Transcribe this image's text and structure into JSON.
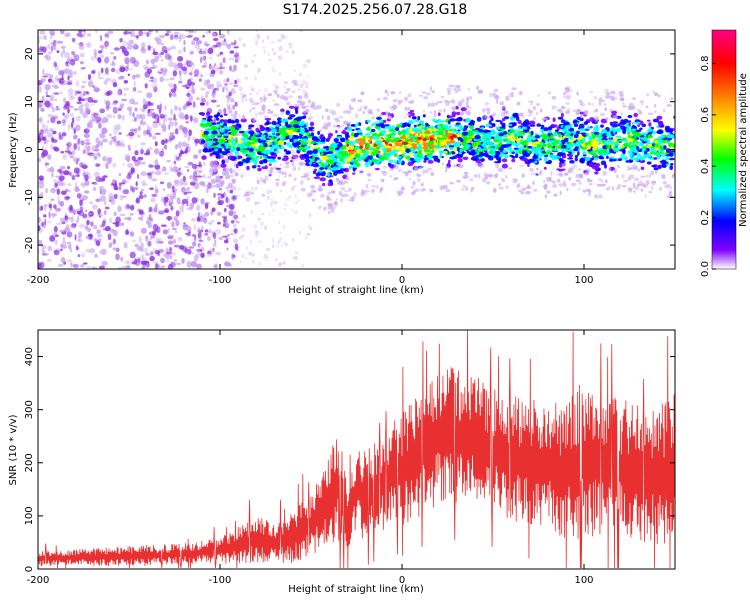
{
  "title": "S174.2025.256.07.28.G18",
  "chart_data": [
    {
      "type": "heatmap",
      "title": "S174.2025.256.07.28.G18",
      "xlabel": "Height of straight line (km)",
      "ylabel": "Frequency (Hz)",
      "xlim": [
        -200,
        150
      ],
      "ylim": [
        -25,
        25
      ],
      "xticks": [
        -200,
        -100,
        0,
        100
      ],
      "xtick_labels": [
        "-200",
        "-100",
        "0",
        "100"
      ],
      "yticks": [
        -20,
        -10,
        0,
        10,
        20
      ],
      "ytick_labels": [
        "-20",
        "-10",
        "0",
        "10",
        "20"
      ],
      "colorbar": {
        "label": "Normalized spectral amplitude",
        "range": [
          0,
          0.93
        ],
        "ticks": [
          0.0,
          0.2,
          0.4,
          0.6,
          0.8
        ],
        "tick_labels": [
          "0.0",
          "0.2",
          "0.4",
          "0.6",
          "0.8"
        ],
        "colormap": [
          "#ffffff",
          "#8000ff",
          "#0000ff",
          "#00ffff",
          "#00ff00",
          "#ffff00",
          "#ff8000",
          "#ff0000",
          "#ff0080"
        ]
      },
      "ridge_line": {
        "x": [
          -110,
          -100,
          -90,
          -80,
          -70,
          -60,
          -50,
          -45,
          -40,
          -35,
          -30,
          -20,
          -10,
          0,
          10,
          20,
          30,
          40,
          50,
          60,
          70,
          80,
          90,
          100,
          110,
          120,
          130,
          140,
          150
        ],
        "y": [
          3.5,
          2.5,
          1.5,
          0.5,
          1.5,
          4.0,
          1.0,
          -1.5,
          -2.5,
          -1.0,
          0.0,
          1.0,
          1.5,
          1.5,
          2.0,
          2.0,
          2.5,
          2.0,
          1.5,
          2.5,
          1.5,
          1.0,
          2.0,
          1.5,
          1.0,
          2.0,
          1.5,
          1.0,
          0.5
        ]
      }
    },
    {
      "type": "line",
      "title": "",
      "xlabel": "Height of straight line (km)",
      "ylabel": "SNR (10 * v/v)",
      "xlim": [
        -200,
        150
      ],
      "ylim": [
        0,
        450
      ],
      "xticks": [
        -200,
        -100,
        0,
        100
      ],
      "xtick_labels": [
        "-200",
        "-100",
        "0",
        "100"
      ],
      "yticks": [
        0,
        100,
        200,
        300,
        400
      ],
      "ytick_labels": [
        "0",
        "100",
        "200",
        "300",
        "400"
      ],
      "series": [
        {
          "name": "SNR",
          "color": "#e83030",
          "x": [
            -200,
            -180,
            -160,
            -140,
            -120,
            -100,
            -90,
            -80,
            -70,
            -60,
            -50,
            -45,
            -40,
            -35,
            -30,
            -25,
            -20,
            -15,
            -10,
            -5,
            0,
            10,
            20,
            30,
            40,
            50,
            60,
            70,
            80,
            90,
            100,
            110,
            120,
            130,
            140,
            150
          ],
          "mean": [
            20,
            22,
            23,
            25,
            28,
            35,
            45,
            55,
            50,
            60,
            80,
            110,
            130,
            160,
            90,
            150,
            140,
            150,
            160,
            180,
            190,
            220,
            250,
            250,
            245,
            220,
            210,
            200,
            200,
            180,
            210,
            195,
            190,
            180,
            175,
            190
          ],
          "spread": [
            15,
            15,
            18,
            20,
            20,
            25,
            35,
            45,
            40,
            50,
            60,
            70,
            80,
            110,
            60,
            80,
            90,
            90,
            90,
            100,
            110,
            120,
            130,
            130,
            120,
            120,
            120,
            120,
            120,
            130,
            150,
            140,
            130,
            130,
            130,
            140
          ]
        }
      ]
    }
  ]
}
